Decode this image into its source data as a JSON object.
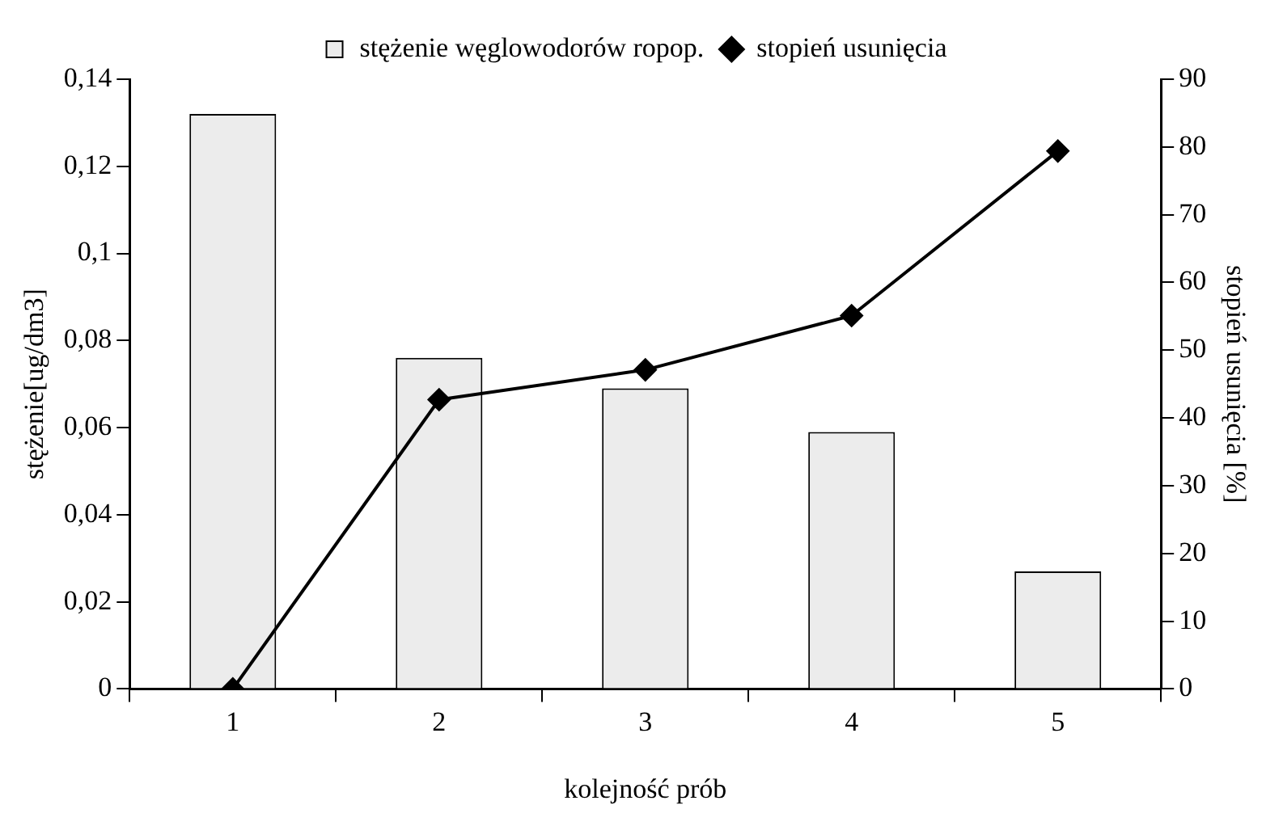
{
  "chart_data": {
    "type": "bar",
    "categories": [
      "1",
      "2",
      "3",
      "4",
      "5"
    ],
    "series": [
      {
        "name": "stężenie węglowodorów ropop.",
        "color": "#ececec",
        "values": [
          0.132,
          0.076,
          0.069,
          0.059,
          0.027
        ]
      },
      {
        "name": "stopień usunięcia",
        "type": "line",
        "axis": "y2",
        "color": "#000000",
        "values": [
          0,
          42.7,
          47.1,
          55.1,
          79.4
        ]
      }
    ],
    "xlabel": "kolejność prób",
    "ylabel": "stężenie[ug/dm3]",
    "y2label": "stopień usunięcia [%]",
    "ylim": [
      0,
      0.14
    ],
    "yticks": [
      {
        "value": 0,
        "label": "0"
      },
      {
        "value": 0.02,
        "label": "0,02"
      },
      {
        "value": 0.04,
        "label": "0,04"
      },
      {
        "value": 0.06,
        "label": "0,06"
      },
      {
        "value": 0.08,
        "label": "0,08"
      },
      {
        "value": 0.1,
        "label": "0,1"
      },
      {
        "value": 0.12,
        "label": "0,12"
      },
      {
        "value": 0.14,
        "label": "0,14"
      }
    ],
    "y2lim": [
      0,
      90
    ],
    "y2ticks": [
      0,
      10,
      20,
      30,
      40,
      50,
      60,
      70,
      80,
      90
    ],
    "grid": false,
    "legend": "top",
    "marker": "diamond",
    "line_style": "solid"
  }
}
